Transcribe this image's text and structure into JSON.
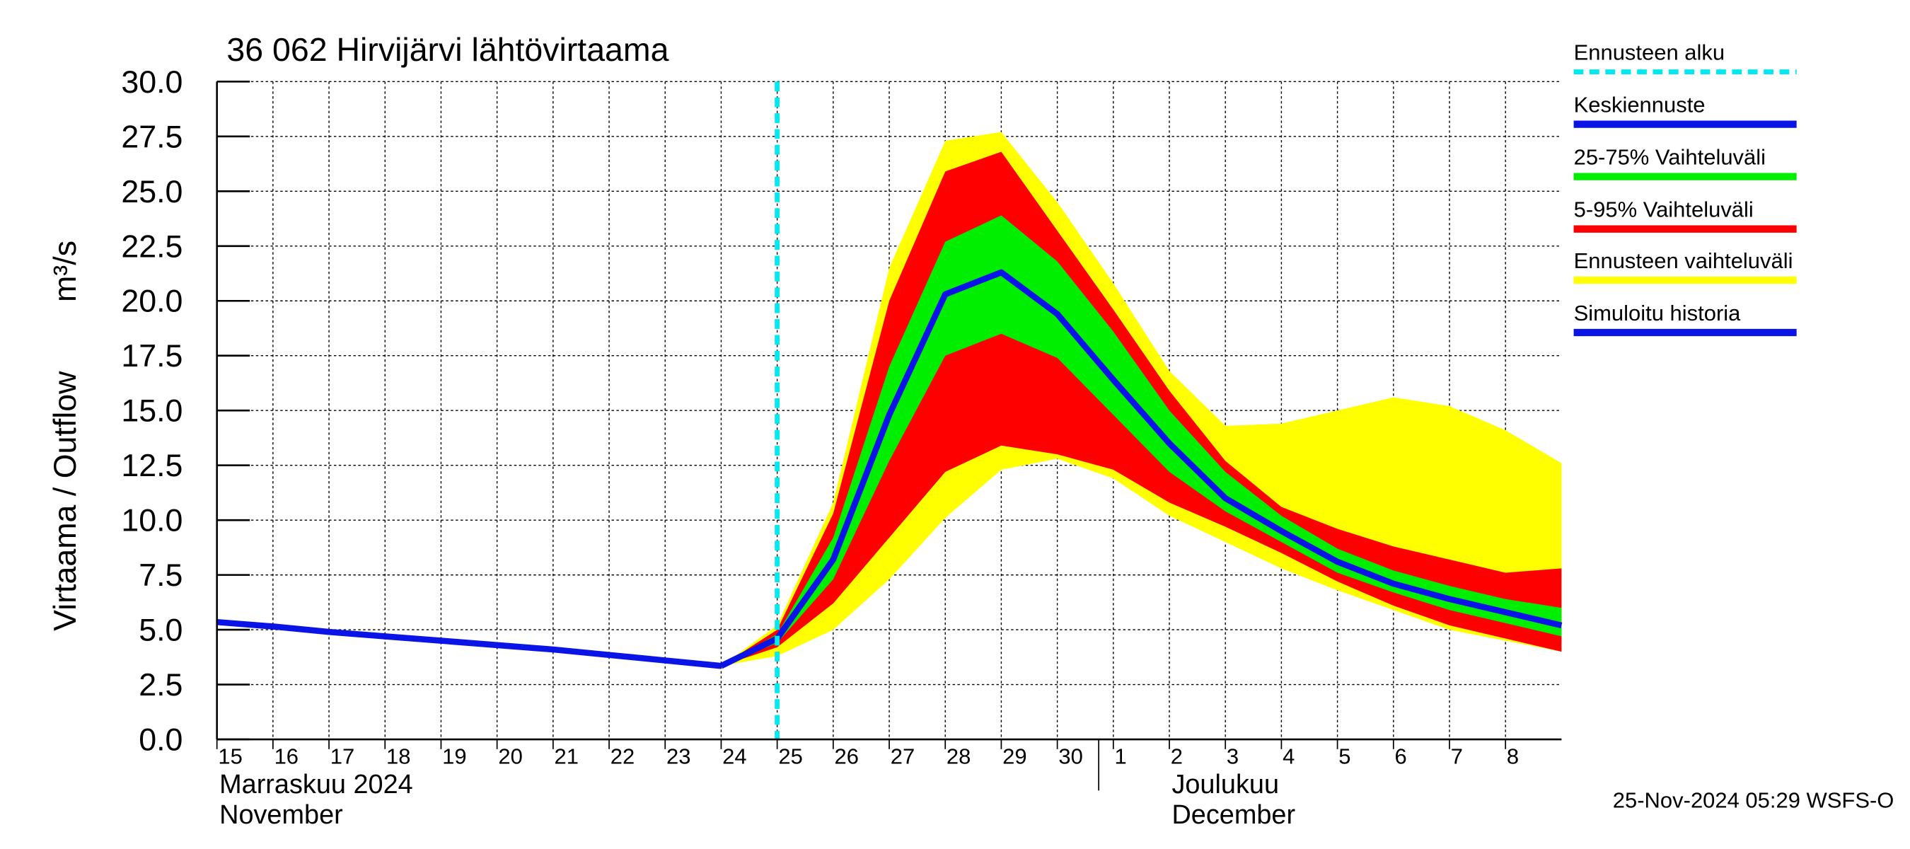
{
  "chart_data": {
    "type": "line",
    "title": "36 062 Hirvijärvi lähtövirtaama",
    "ylabel": "Virtaama / Outflow",
    "yunit": "m³/s",
    "footer": "25-Nov-2024 05:29 WSFS-O",
    "xlim": [
      "2024-11-15",
      "2024-12-09"
    ],
    "ylim": [
      0,
      30
    ],
    "yticks": [
      {
        "value": 0,
        "label": "0.0"
      },
      2.5,
      {
        "value": 5,
        "label": "5.0"
      },
      7.5,
      {
        "value": 10,
        "label": "10.0"
      },
      12.5,
      {
        "value": 15,
        "label": "15.0"
      },
      17.5,
      {
        "value": 20,
        "label": "20.0"
      },
      22.5,
      {
        "value": 25,
        "label": "25.0"
      },
      27.5,
      {
        "value": 30,
        "label": "30.0"
      }
    ],
    "xticks": [
      {
        "value": "2024-11-15",
        "label": "15"
      },
      {
        "value": "2024-11-16",
        "label": "16"
      },
      {
        "value": "2024-11-17",
        "label": "17"
      },
      {
        "value": "2024-11-18",
        "label": "18"
      },
      {
        "value": "2024-11-19",
        "label": "19"
      },
      {
        "value": "2024-11-20",
        "label": "20"
      },
      {
        "value": "2024-11-21",
        "label": "21"
      },
      {
        "value": "2024-11-22",
        "label": "22"
      },
      {
        "value": "2024-11-23",
        "label": "23"
      },
      {
        "value": "2024-11-24",
        "label": "24"
      },
      {
        "value": "2024-11-25",
        "label": "25"
      },
      {
        "value": "2024-11-26",
        "label": "26"
      },
      {
        "value": "2024-11-27",
        "label": "27"
      },
      {
        "value": "2024-11-28",
        "label": "28"
      },
      {
        "value": "2024-11-29",
        "label": "29"
      },
      {
        "value": "2024-11-30",
        "label": "30"
      },
      {
        "value": "2024-12-01",
        "label": "1"
      },
      {
        "value": "2024-12-02",
        "label": "2"
      },
      {
        "value": "2024-12-03",
        "label": "3"
      },
      {
        "value": "2024-12-04",
        "label": "4"
      },
      {
        "value": "2024-12-05",
        "label": "5"
      },
      {
        "value": "2024-12-06",
        "label": "6"
      },
      {
        "value": "2024-12-07",
        "label": "7"
      },
      {
        "value": "2024-12-08",
        "label": "8"
      }
    ],
    "month_labels": [
      {
        "x": "2024-11-15",
        "lines": [
          "Marraskuu 2024",
          "November"
        ]
      },
      {
        "x": "2024-12-01",
        "lines": [
          "Joulukuu",
          "December"
        ]
      }
    ],
    "grid": true,
    "forecast_start": {
      "name": "Ennusteen alku",
      "x": "2024-11-25",
      "color": "#00e8f0"
    },
    "forecast_x": [
      "2024-11-24",
      "2024-11-25",
      "2024-11-26",
      "2024-11-27",
      "2024-11-28",
      "2024-11-29",
      "2024-11-30",
      "2024-12-01",
      "2024-12-02",
      "2024-12-03",
      "2024-12-04",
      "2024-12-05",
      "2024-12-06",
      "2024-12-07",
      "2024-12-08",
      "2024-12-09"
    ],
    "series": [
      {
        "name": "Keskiennuste",
        "color": "#0a14e6",
        "values": [
          3.35,
          4.6,
          8.2,
          14.8,
          20.3,
          21.3,
          19.4,
          16.4,
          13.5,
          11.0,
          9.5,
          8.1,
          7.1,
          6.4,
          5.8,
          5.2
        ]
      },
      {
        "name": "Simuloitu historia",
        "color": "#0a14e6",
        "x": [
          "2024-11-15",
          "2024-11-16",
          "2024-11-17",
          "2024-11-18",
          "2024-11-19",
          "2024-11-20",
          "2024-11-21",
          "2024-11-22",
          "2024-11-23",
          "2024-11-24"
        ],
        "values": [
          5.35,
          5.15,
          4.9,
          4.7,
          4.5,
          4.3,
          4.1,
          3.85,
          3.6,
          3.35
        ]
      }
    ],
    "bands": [
      {
        "name": "Ennusteen vaihteluväli",
        "color": "#ffff00",
        "lower": [
          3.35,
          3.8,
          5.0,
          7.3,
          10.1,
          12.3,
          12.8,
          11.9,
          10.2,
          9.0,
          7.8,
          6.8,
          5.9,
          5.0,
          4.5,
          4.0
        ],
        "upper": [
          3.35,
          5.2,
          10.8,
          21.5,
          27.3,
          27.7,
          24.5,
          20.8,
          16.8,
          14.3,
          14.4,
          15.0,
          15.6,
          15.2,
          14.1,
          12.6
        ]
      },
      {
        "name": "5-95% Vaihteluväli",
        "color": "#ff0000",
        "lower": [
          3.35,
          4.2,
          6.2,
          9.2,
          12.2,
          13.4,
          13.0,
          12.3,
          10.8,
          9.7,
          8.5,
          7.2,
          6.1,
          5.2,
          4.6,
          4.0
        ],
        "upper": [
          3.35,
          5.0,
          10.3,
          20.0,
          25.9,
          26.8,
          23.2,
          19.6,
          15.9,
          12.7,
          10.6,
          9.6,
          8.8,
          8.2,
          7.6,
          7.8
        ]
      },
      {
        "name": "25-75% Vaihteluväli",
        "color": "#00ee00",
        "lower": [
          3.35,
          4.4,
          7.3,
          12.7,
          17.5,
          18.5,
          17.4,
          14.8,
          12.2,
          10.4,
          9.0,
          7.6,
          6.7,
          5.9,
          5.3,
          4.7
        ],
        "upper": [
          3.35,
          4.8,
          9.2,
          17.0,
          22.7,
          23.9,
          21.8,
          18.6,
          15.0,
          12.2,
          10.2,
          8.7,
          7.7,
          7.0,
          6.4,
          6.0
        ]
      }
    ]
  }
}
